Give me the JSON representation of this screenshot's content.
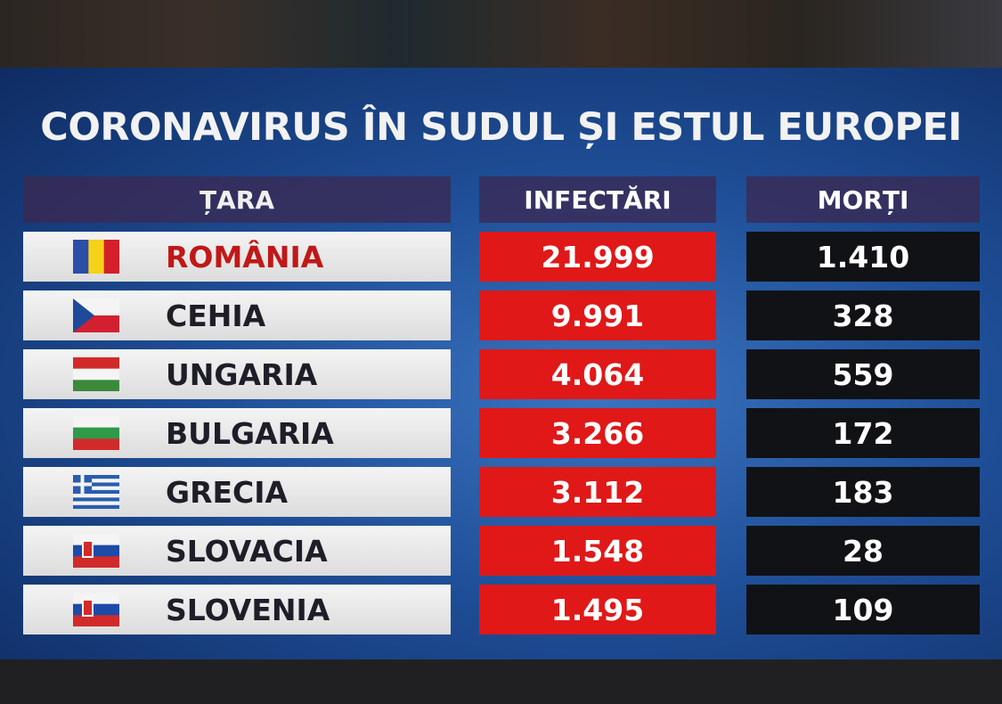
{
  "title": "CORONAVIRUS ÎN SUDUL ȘI ESTUL EUROPEI",
  "table": {
    "header": [
      "ȚARA",
      "INFECTĂRI",
      "MORȚI"
    ],
    "rows": [
      [
        "ROMÂNIA",
        "21.999",
        "1.410"
      ],
      [
        "CEHIA",
        "9.991",
        "328"
      ],
      [
        "UNGARIA",
        "4.064",
        "559"
      ],
      [
        "BULGARIA",
        "3.266",
        "172"
      ],
      [
        "GRECIA",
        "3.112",
        "183"
      ],
      [
        "SLOVACIA",
        "1.548",
        "28"
      ],
      [
        "SLOVENIA",
        "1.495",
        "109"
      ]
    ]
  }
}
